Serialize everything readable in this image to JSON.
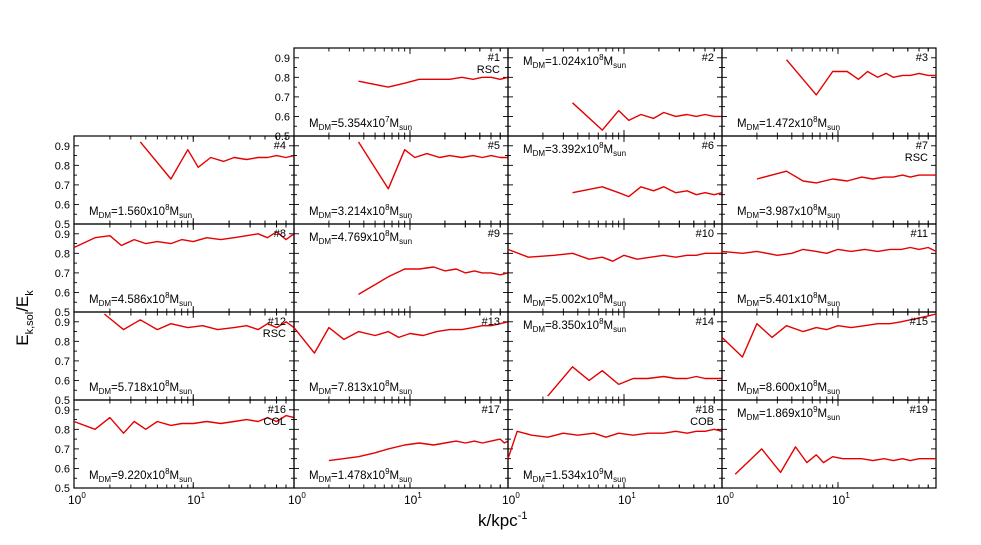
{
  "figure": {
    "xlabel": "k/kpc",
    "xlabel_sup": "-1",
    "ylabel_main": "E",
    "ylabel_sub": "k,sol",
    "ylabel_slash": "/E",
    "ylabel_sub2": "k"
  },
  "chart_data": {
    "type": "line",
    "layout": "grid of 19 panels, 5 rows x 4 columns, top-left cell empty",
    "x_scale": "log",
    "xlim": [
      1,
      70
    ],
    "ylim": [
      0.5,
      0.95
    ],
    "y_ticks": [
      "0.5",
      "0.6",
      "0.7",
      "0.8",
      "0.9"
    ],
    "x_ticks": [
      {
        "value": 1,
        "base": "10",
        "exp": "0"
      },
      {
        "value": 10,
        "base": "10",
        "exp": "1"
      }
    ],
    "series_color": "#e50000",
    "panels": [
      {
        "id": "#1",
        "note": "RSC",
        "mass_prefix": "5.354x10",
        "mass_exp": "7",
        "label_pos": "bottom",
        "x": [
          3.6,
          6.5,
          9,
          12,
          16,
          22,
          28,
          35,
          42,
          50,
          60,
          70
        ],
        "y": [
          0.78,
          0.75,
          0.77,
          0.79,
          0.79,
          0.79,
          0.8,
          0.79,
          0.8,
          0.8,
          0.79,
          0.8
        ]
      },
      {
        "id": "#2",
        "note": "",
        "mass_prefix": "1.024x10",
        "mass_exp": "8",
        "label_pos": "top",
        "x": [
          3.6,
          6.5,
          9,
          11,
          14,
          18,
          22,
          28,
          35,
          42,
          50,
          60,
          70
        ],
        "y": [
          0.67,
          0.53,
          0.63,
          0.58,
          0.61,
          0.59,
          0.62,
          0.6,
          0.61,
          0.6,
          0.61,
          0.6,
          0.6
        ]
      },
      {
        "id": "#3",
        "note": "",
        "mass_prefix": "1.472x10",
        "mass_exp": "8",
        "label_pos": "bottom",
        "x": [
          3.6,
          6.5,
          9,
          12,
          15,
          18,
          22,
          26,
          30,
          36,
          42,
          50,
          60,
          70
        ],
        "y": [
          0.89,
          0.71,
          0.83,
          0.83,
          0.79,
          0.83,
          0.8,
          0.82,
          0.8,
          0.81,
          0.81,
          0.82,
          0.81,
          0.81
        ]
      },
      {
        "id": "#4",
        "note": "",
        "mass_prefix": "1.560x10",
        "mass_exp": "8",
        "label_pos": "bottom",
        "x": [
          3.6,
          6.5,
          9,
          11,
          14,
          18,
          22,
          28,
          35,
          42,
          50,
          60,
          70
        ],
        "y": [
          0.92,
          0.73,
          0.88,
          0.79,
          0.84,
          0.82,
          0.84,
          0.83,
          0.84,
          0.84,
          0.85,
          0.84,
          0.85
        ]
      },
      {
        "id": "#5",
        "note": "",
        "mass_prefix": "3.214x10",
        "mass_exp": "8",
        "label_pos": "bottom",
        "x": [
          3.6,
          6.5,
          9,
          11,
          14,
          18,
          22,
          28,
          35,
          42,
          50,
          60,
          70
        ],
        "y": [
          0.92,
          0.68,
          0.88,
          0.84,
          0.86,
          0.84,
          0.85,
          0.84,
          0.85,
          0.84,
          0.85,
          0.84,
          0.84
        ]
      },
      {
        "id": "#6",
        "note": "",
        "mass_prefix": "3.392x10",
        "mass_exp": "8",
        "label_pos": "top",
        "x": [
          3.6,
          6.5,
          9,
          11,
          14,
          18,
          22,
          28,
          35,
          42,
          50,
          60,
          70
        ],
        "y": [
          0.66,
          0.69,
          0.66,
          0.64,
          0.69,
          0.67,
          0.69,
          0.66,
          0.67,
          0.65,
          0.66,
          0.65,
          0.66
        ]
      },
      {
        "id": "#7",
        "note": "RSC",
        "mass_prefix": "3.987x10",
        "mass_exp": "8",
        "label_pos": "bottom",
        "x": [
          2,
          3.6,
          5,
          6.5,
          9,
          12,
          16,
          20,
          25,
          30,
          36,
          42,
          50,
          60,
          70
        ],
        "y": [
          0.73,
          0.77,
          0.72,
          0.71,
          0.73,
          0.72,
          0.74,
          0.73,
          0.74,
          0.74,
          0.75,
          0.74,
          0.75,
          0.75,
          0.75
        ]
      },
      {
        "id": "#8",
        "note": "",
        "mass_prefix": "4.586x10",
        "mass_exp": "8",
        "label_pos": "bottom",
        "x": [
          1,
          1.5,
          2,
          2.5,
          3.2,
          4,
          5,
          6.5,
          8,
          10,
          13,
          17,
          22,
          28,
          35,
          42,
          50,
          60,
          70
        ],
        "y": [
          0.83,
          0.88,
          0.89,
          0.84,
          0.87,
          0.85,
          0.86,
          0.85,
          0.87,
          0.86,
          0.88,
          0.87,
          0.88,
          0.89,
          0.9,
          0.88,
          0.91,
          0.87,
          0.9
        ]
      },
      {
        "id": "#9",
        "note": "",
        "mass_prefix": "4.769x10",
        "mass_exp": "8",
        "label_pos": "top",
        "x": [
          3.6,
          6.5,
          9,
          12,
          16,
          20,
          25,
          30,
          36,
          42,
          50,
          60,
          70
        ],
        "y": [
          0.59,
          0.68,
          0.72,
          0.72,
          0.73,
          0.71,
          0.72,
          0.7,
          0.71,
          0.7,
          0.7,
          0.69,
          0.7
        ]
      },
      {
        "id": "#10",
        "note": "",
        "mass_prefix": "5.002x10",
        "mass_exp": "8",
        "label_pos": "bottom",
        "x": [
          1,
          1.5,
          2.5,
          3.6,
          5,
          6.5,
          8,
          10,
          13,
          17,
          22,
          28,
          35,
          42,
          50,
          60,
          70
        ],
        "y": [
          0.82,
          0.78,
          0.79,
          0.8,
          0.77,
          0.78,
          0.76,
          0.79,
          0.77,
          0.78,
          0.79,
          0.78,
          0.79,
          0.79,
          0.8,
          0.8,
          0.8
        ]
      },
      {
        "id": "#11",
        "note": "",
        "mass_prefix": "5.401x10",
        "mass_exp": "8",
        "label_pos": "bottom",
        "x": [
          1,
          1.5,
          2,
          3,
          4,
          5,
          6.5,
          8,
          10,
          13,
          17,
          22,
          28,
          35,
          42,
          50,
          60,
          70
        ],
        "y": [
          0.81,
          0.8,
          0.81,
          0.79,
          0.8,
          0.82,
          0.81,
          0.8,
          0.82,
          0.81,
          0.82,
          0.81,
          0.82,
          0.82,
          0.83,
          0.82,
          0.83,
          0.81
        ]
      },
      {
        "id": "#12",
        "note": "RSC",
        "mass_prefix": "5.718x10",
        "mass_exp": "8",
        "label_pos": "bottom",
        "x": [
          1.8,
          2.6,
          3.6,
          5,
          6.5,
          9,
          12,
          16,
          22,
          28,
          35,
          42,
          50,
          60,
          70
        ],
        "y": [
          0.94,
          0.86,
          0.91,
          0.86,
          0.89,
          0.87,
          0.88,
          0.86,
          0.87,
          0.88,
          0.86,
          0.89,
          0.87,
          0.9,
          0.87
        ]
      },
      {
        "id": "#13",
        "note": "",
        "mass_prefix": "7.813x10",
        "mass_exp": "8",
        "label_pos": "bottom",
        "x": [
          1,
          1.5,
          2,
          2.7,
          3.6,
          5,
          6.5,
          8,
          10,
          13,
          17,
          22,
          28,
          35,
          42,
          50,
          60,
          70
        ],
        "y": [
          0.87,
          0.74,
          0.87,
          0.81,
          0.85,
          0.83,
          0.85,
          0.82,
          0.84,
          0.83,
          0.85,
          0.86,
          0.86,
          0.87,
          0.88,
          0.88,
          0.89,
          0.9
        ]
      },
      {
        "id": "#14",
        "note": "",
        "mass_prefix": "8.350x10",
        "mass_exp": "8",
        "label_pos": "top",
        "x": [
          2.2,
          3.6,
          5,
          6.5,
          9,
          12,
          16,
          22,
          28,
          35,
          42,
          50,
          60,
          70
        ],
        "y": [
          0.52,
          0.67,
          0.6,
          0.65,
          0.58,
          0.61,
          0.61,
          0.62,
          0.61,
          0.61,
          0.62,
          0.61,
          0.61,
          0.61
        ]
      },
      {
        "id": "#15",
        "note": "",
        "mass_prefix": "8.600x10",
        "mass_exp": "8",
        "label_pos": "bottom",
        "x": [
          1,
          1.5,
          2,
          2.7,
          3.6,
          5,
          6.5,
          8,
          10,
          13,
          17,
          22,
          28,
          35,
          42,
          50,
          60,
          70
        ],
        "y": [
          0.82,
          0.72,
          0.89,
          0.82,
          0.88,
          0.85,
          0.87,
          0.86,
          0.88,
          0.87,
          0.88,
          0.89,
          0.89,
          0.9,
          0.91,
          0.92,
          0.93,
          0.94
        ]
      },
      {
        "id": "#16",
        "note": "COL",
        "mass_prefix": "9.220x10",
        "mass_exp": "8",
        "label_pos": "bottom",
        "x": [
          1,
          1.5,
          2,
          2.6,
          3.2,
          4,
          5,
          6.5,
          8,
          10,
          13,
          17,
          22,
          28,
          35,
          42,
          50,
          60,
          70
        ],
        "y": [
          0.84,
          0.8,
          0.86,
          0.78,
          0.84,
          0.8,
          0.84,
          0.82,
          0.83,
          0.83,
          0.84,
          0.83,
          0.84,
          0.85,
          0.84,
          0.86,
          0.84,
          0.87,
          0.86
        ]
      },
      {
        "id": "#17",
        "note": "",
        "mass_prefix": "1.478x10",
        "mass_exp": "9",
        "label_pos": "bottom",
        "x": [
          2,
          3.6,
          5,
          6.5,
          9,
          12,
          16,
          20,
          25,
          30,
          36,
          42,
          50,
          60,
          65,
          70
        ],
        "y": [
          0.64,
          0.66,
          0.68,
          0.7,
          0.72,
          0.73,
          0.72,
          0.73,
          0.74,
          0.73,
          0.74,
          0.73,
          0.74,
          0.75,
          0.73,
          0.74
        ]
      },
      {
        "id": "#18",
        "note": "COB",
        "mass_prefix": "1.534x10",
        "mass_exp": "9",
        "label_pos": "bottom",
        "x": [
          1,
          1.2,
          1.6,
          2.2,
          3,
          4,
          5.5,
          7,
          9,
          12,
          16,
          22,
          28,
          35,
          42,
          50,
          60,
          70
        ],
        "y": [
          0.65,
          0.79,
          0.77,
          0.76,
          0.78,
          0.77,
          0.78,
          0.76,
          0.78,
          0.77,
          0.78,
          0.78,
          0.79,
          0.78,
          0.79,
          0.79,
          0.8,
          0.79
        ]
      },
      {
        "id": "#19",
        "note": "",
        "mass_prefix": "1.869x10",
        "mass_exp": "9",
        "label_pos": "top",
        "x": [
          1.3,
          2.2,
          3.2,
          4.3,
          5.4,
          6.5,
          7.5,
          9,
          11,
          13,
          16,
          20,
          25,
          30,
          36,
          42,
          50,
          60,
          70
        ],
        "y": [
          0.57,
          0.7,
          0.58,
          0.71,
          0.63,
          0.67,
          0.63,
          0.66,
          0.65,
          0.65,
          0.65,
          0.64,
          0.65,
          0.64,
          0.65,
          0.64,
          0.65,
          0.65,
          0.65
        ]
      }
    ]
  }
}
